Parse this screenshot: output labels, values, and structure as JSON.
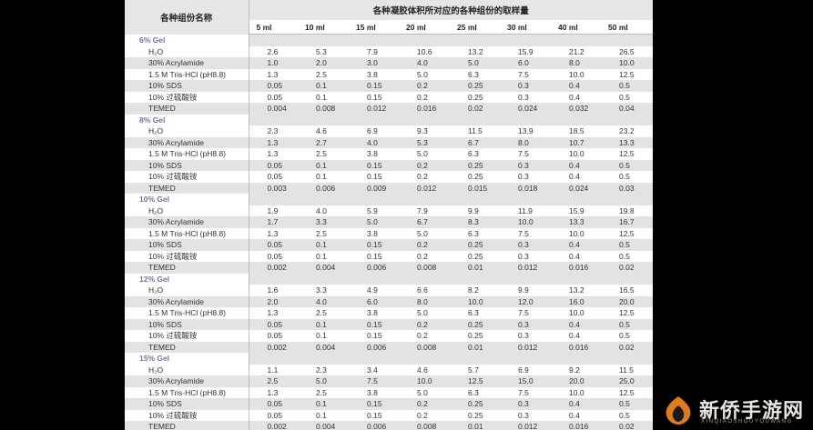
{
  "table": {
    "name_header": "各种组份名称",
    "volume_header": "各种凝胶体积所对应的各种组份的取样量",
    "volumes": [
      "5 ml",
      "10 ml",
      "15 ml",
      "20 ml",
      "25 ml",
      "30 ml",
      "40 ml",
      "50 ml"
    ],
    "groups": [
      {
        "title": "6% Gel",
        "rows": [
          {
            "name": "H₂O",
            "values": [
              "2.6",
              "5.3",
              "7.9",
              "10.6",
              "13.2",
              "15.9",
              "21.2",
              "26.5"
            ]
          },
          {
            "name": "30% Acrylamide",
            "values": [
              "1.0",
              "2.0",
              "3.0",
              "4.0",
              "5.0",
              "6.0",
              "8.0",
              "10.0"
            ]
          },
          {
            "name": "1.5 M Tris-HCl (pH8.8)",
            "values": [
              "1.3",
              "2.5",
              "3.8",
              "5.0",
              "6.3",
              "7.5",
              "10.0",
              "12.5"
            ]
          },
          {
            "name": "10% SDS",
            "values": [
              "0.05",
              "0.1",
              "0.15",
              "0.2",
              "0.25",
              "0.3",
              "0.4",
              "0.5"
            ]
          },
          {
            "name": "10% 过硫酸铵",
            "values": [
              "0.05",
              "0.1",
              "0.15",
              "0.2",
              "0.25",
              "0.3",
              "0.4",
              "0.5"
            ]
          },
          {
            "name": "TEMED",
            "values": [
              "0.004",
              "0.008",
              "0.012",
              "0.016",
              "0.02",
              "0.024",
              "0.032",
              "0.04"
            ]
          }
        ]
      },
      {
        "title": "8% Gel",
        "rows": [
          {
            "name": "H₂O",
            "values": [
              "2.3",
              "4.6",
              "6.9",
              "9.3",
              "11.5",
              "13.9",
              "18.5",
              "23.2"
            ]
          },
          {
            "name": "30% Acrylamide",
            "values": [
              "1.3",
              "2.7",
              "4.0",
              "5.3",
              "6.7",
              "8.0",
              "10.7",
              "13.3"
            ]
          },
          {
            "name": "1.5 M Tris-HCl (pH8.8)",
            "values": [
              "1.3",
              "2.5",
              "3.8",
              "5.0",
              "6.3",
              "7.5",
              "10.0",
              "12.5"
            ]
          },
          {
            "name": "10% SDS",
            "values": [
              "0.05",
              "0.1",
              "0.15",
              "0.2",
              "0.25",
              "0.3",
              "0.4",
              "0.5"
            ]
          },
          {
            "name": "10% 过硫酸铵",
            "values": [
              "0.05",
              "0.1",
              "0.15",
              "0.2",
              "0.25",
              "0.3",
              "0.4",
              "0.5"
            ]
          },
          {
            "name": "TEMED",
            "values": [
              "0.003",
              "0.006",
              "0.009",
              "0.012",
              "0.015",
              "0.018",
              "0.024",
              "0.03"
            ]
          }
        ]
      },
      {
        "title": "10% Gel",
        "rows": [
          {
            "name": "H₂O",
            "values": [
              "1.9",
              "4.0",
              "5.9",
              "7.9",
              "9.9",
              "11.9",
              "15.9",
              "19.8"
            ]
          },
          {
            "name": "30% Acrylamide",
            "values": [
              "1.7",
              "3.3",
              "5.0",
              "6.7",
              "8.3",
              "10.0",
              "13.3",
              "16.7"
            ]
          },
          {
            "name": "1.5 M Tris-HCl (pH8.8)",
            "values": [
              "1.3",
              "2.5",
              "3.8",
              "5.0",
              "6.3",
              "7.5",
              "10.0",
              "12.5"
            ]
          },
          {
            "name": "10% SDS",
            "values": [
              "0.05",
              "0.1",
              "0.15",
              "0.2",
              "0.25",
              "0.3",
              "0.4",
              "0.5"
            ]
          },
          {
            "name": "10% 过硫酸铵",
            "values": [
              "0.05",
              "0.1",
              "0.15",
              "0.2",
              "0.25",
              "0.3",
              "0.4",
              "0.5"
            ]
          },
          {
            "name": "TEMED",
            "values": [
              "0.002",
              "0.004",
              "0.006",
              "0.008",
              "0.01",
              "0.012",
              "0.016",
              "0.02"
            ]
          }
        ]
      },
      {
        "title": "12% Gel",
        "rows": [
          {
            "name": "H₂O",
            "values": [
              "1.6",
              "3.3",
              "4.9",
              "6.6",
              "8.2",
              "9.9",
              "13.2",
              "16.5"
            ]
          },
          {
            "name": "30% Acrylamide",
            "values": [
              "2.0",
              "4.0",
              "6.0",
              "8.0",
              "10.0",
              "12.0",
              "16.0",
              "20.0"
            ]
          },
          {
            "name": "1.5 M Tris-HCl (pH8.8)",
            "values": [
              "1.3",
              "2.5",
              "3.8",
              "5.0",
              "6.3",
              "7.5",
              "10.0",
              "12.5"
            ]
          },
          {
            "name": "10% SDS",
            "values": [
              "0.05",
              "0.1",
              "0.15",
              "0.2",
              "0.25",
              "0.3",
              "0.4",
              "0.5"
            ]
          },
          {
            "name": "10% 过硫酸铵",
            "values": [
              "0.05",
              "0.1",
              "0.15",
              "0.2",
              "0.25",
              "0.3",
              "0.4",
              "0.5"
            ]
          },
          {
            "name": "TEMED",
            "values": [
              "0.002",
              "0.004",
              "0.006",
              "0.008",
              "0.01",
              "0.012",
              "0.016",
              "0.02"
            ]
          }
        ]
      },
      {
        "title": "15% Gel",
        "rows": [
          {
            "name": "H₂O",
            "values": [
              "1.1",
              "2.3",
              "3.4",
              "4.6",
              "5.7",
              "6.9",
              "9.2",
              "11.5"
            ]
          },
          {
            "name": "30% Acrylamide",
            "values": [
              "2.5",
              "5.0",
              "7.5",
              "10.0",
              "12.5",
              "15.0",
              "20.0",
              "25.0"
            ]
          },
          {
            "name": "1.5 M Tris-HCl (pH8.8)",
            "values": [
              "1.3",
              "2.5",
              "3.8",
              "5.0",
              "6.3",
              "7.5",
              "10.0",
              "12.5"
            ]
          },
          {
            "name": "10% SDS",
            "values": [
              "0.05",
              "0.1",
              "0.15",
              "0.2",
              "0.25",
              "0.3",
              "0.4",
              "0.5"
            ]
          },
          {
            "name": "10% 过硫酸铵",
            "values": [
              "0.05",
              "0.1",
              "0.15",
              "0.2",
              "0.25",
              "0.3",
              "0.4",
              "0.5"
            ]
          },
          {
            "name": "TEMED",
            "values": [
              "0.002",
              "0.004",
              "0.006",
              "0.008",
              "0.01",
              "0.012",
              "0.016",
              "0.02"
            ]
          }
        ]
      }
    ]
  },
  "watermark": {
    "title": "新侨手游网",
    "subtitle": "XINQIAOSHOUYOUWANG",
    "logo_icon": "flame-logo-icon",
    "colors": {
      "logo_outer": "#e07a1f",
      "logo_inner": "#1a1a1a",
      "text": "#e9e4de"
    }
  }
}
